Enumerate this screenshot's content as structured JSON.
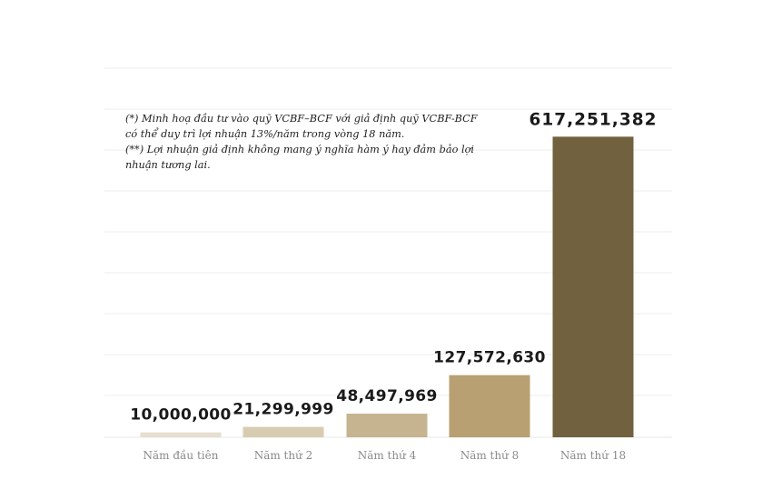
{
  "chart_data": {
    "type": "bar",
    "categories": [
      "Năm đầu tiên",
      "Năm thứ 2",
      "Năm thứ 4",
      "Năm thứ 8",
      "Năm thứ 18"
    ],
    "values": [
      10000000,
      21299999,
      48497969,
      127572630,
      617251382
    ],
    "value_labels": [
      "10,000,000",
      "21,299,999",
      "48,497,969",
      "127,572,630",
      "617,251,382"
    ],
    "bar_colors": [
      "#e6dfcf",
      "#d8ccb0",
      "#c5b48f",
      "#b8a072",
      "#72613f"
    ],
    "ylim": [
      0,
      700000000
    ],
    "grid": true,
    "title": "",
    "xlabel": "",
    "ylabel": ""
  },
  "note": {
    "lines": [
      "(*) Minh hoạ đầu tư vào quỹ VCBF–BCF với giả định quỹ VCBF-BCF",
      "có thể duy trì lợi nhuận 13%/năm trong vòng  18  năm.",
      "(**) Lợi nhuận giả định không mang ý nghĩa hàm ý hay đảm bảo lợi",
      "nhuận tương lai."
    ]
  },
  "colors": {
    "grid": "#ececec",
    "label": "#1a1a1a",
    "tick": "#8a8a8a"
  }
}
